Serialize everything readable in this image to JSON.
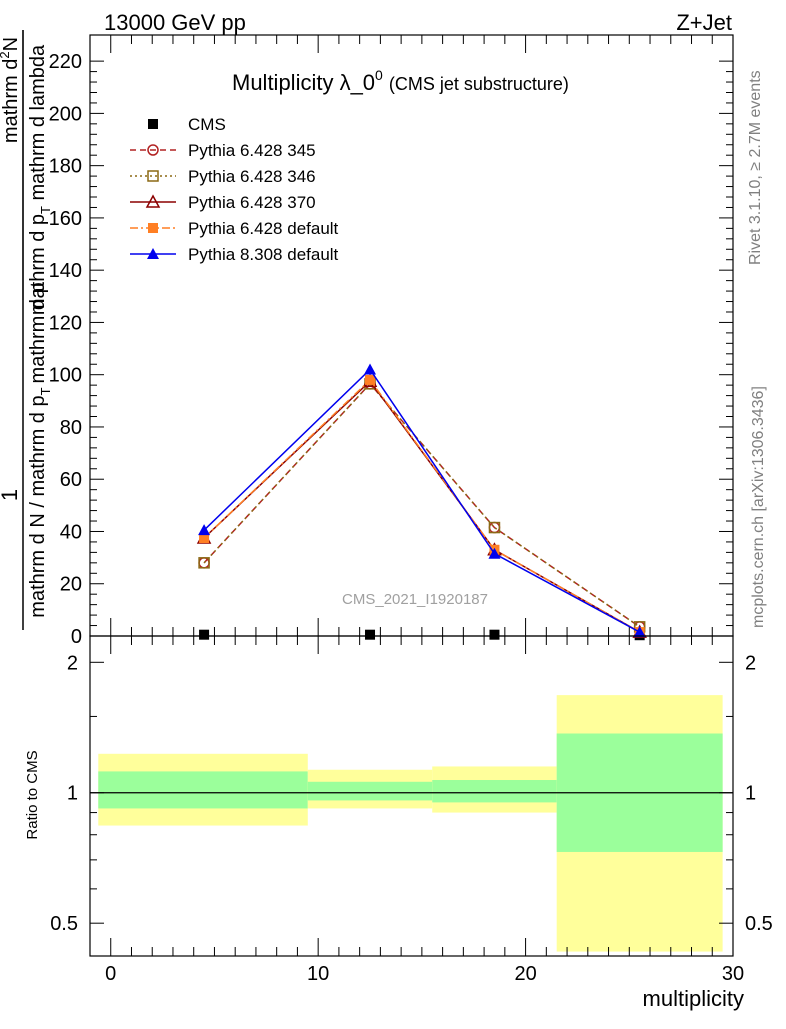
{
  "header": {
    "energy_label": "13000 GeV pp",
    "process_label": "Z+Jet",
    "analysis_id": "CMS_2021_I1920187",
    "rivet_label": "Rivet 3.1.10, ≥ 2.7M events",
    "source_label": "mcplots.cern.ch [arXiv:1306.3436]"
  },
  "colors": {
    "cms": "#000000",
    "p6_345": "#b22222",
    "p6_346": "#8b6914",
    "p6_370": "#8b0000",
    "p6_default": "#ff7f24",
    "p8_default": "#0000ee",
    "band_inner": "#9bff9b",
    "band_outer": "#ffff9b"
  },
  "chart_data": [
    {
      "type": "line",
      "title_main": "Multiplicity λ_0",
      "title_sup": "0",
      "title_sub": "(CMS jet substructure)",
      "ylabel_num_top": "1",
      "ylabel_den_top": "mathrm d N / mathrm d p",
      "ylabel_den_top_sub": "T",
      "ylabel_den_top_tail": "mathrm d p",
      "ylabel_num_bottom": "mathrm d",
      "ylabel_num_bottom_sup": "2",
      "ylabel_num_bottom_tail": "N",
      "ylabel_den_bottom": "mathrm d p",
      "ylabel_den_bottom_sub": "T",
      "ylabel_den_bottom_tail": " mathrm d lambda",
      "xlim": [
        -1,
        30
      ],
      "ylim": [
        0,
        230
      ],
      "yticks": [
        0,
        20,
        40,
        60,
        80,
        100,
        120,
        140,
        160,
        180,
        200,
        220
      ],
      "yticklabels": [
        "0",
        "20",
        "40",
        "60",
        "80",
        "100",
        "120",
        "140",
        "160",
        "180",
        "200",
        "220"
      ],
      "legend_position": "top-left",
      "x": [
        4.5,
        12.5,
        18.5,
        25.5
      ],
      "series": [
        {
          "name": "CMS",
          "key": "cms",
          "marker": "square-filled",
          "dash": "none",
          "values": [
            0.5,
            0.5,
            0.5,
            0.3
          ]
        },
        {
          "name": "Pythia 6.428 345",
          "key": "p6_345",
          "marker": "circle-open",
          "dash": "6,4",
          "values": [
            28,
            96.5,
            41.5,
            3.5
          ]
        },
        {
          "name": "Pythia 6.428 346",
          "key": "p6_346",
          "marker": "square-open",
          "dash": "2,3",
          "values": [
            28,
            96.5,
            41.5,
            3.5
          ]
        },
        {
          "name": "Pythia 6.428 370",
          "key": "p6_370",
          "marker": "triangle-open",
          "dash": "none",
          "values": [
            37.5,
            97.5,
            33,
            1.5
          ]
        },
        {
          "name": "Pythia 6.428 default",
          "key": "p6_default",
          "marker": "square-filled",
          "dash": "8,3,2,3",
          "values": [
            37.5,
            98,
            33,
            1.5
          ]
        },
        {
          "name": "Pythia 8.308 default",
          "key": "p8_default",
          "marker": "triangle-filled",
          "dash": "none",
          "values": [
            40.5,
            102,
            31.5,
            1.5
          ]
        }
      ]
    },
    {
      "type": "area",
      "ylabel": "Ratio to CMS",
      "xlabel": "multiplicity",
      "scale": "log",
      "ylim": [
        0.42,
        2.3
      ],
      "xticks": [
        0,
        10,
        20,
        30
      ],
      "xticklabels": [
        "0",
        "10",
        "20",
        "30"
      ],
      "yticks": [
        0.5,
        1,
        2
      ],
      "yticklabels": [
        "0.5",
        "1",
        "2"
      ],
      "reference": 1,
      "bins": [
        {
          "x0": -0.6,
          "x1": 9.5,
          "inner": [
            0.92,
            1.12
          ],
          "outer": [
            0.84,
            1.23
          ]
        },
        {
          "x0": 9.5,
          "x1": 15.5,
          "inner": [
            0.96,
            1.06
          ],
          "outer": [
            0.92,
            1.13
          ]
        },
        {
          "x0": 15.5,
          "x1": 21.5,
          "inner": [
            0.95,
            1.07
          ],
          "outer": [
            0.9,
            1.15
          ]
        },
        {
          "x0": 21.5,
          "x1": 29.5,
          "inner": [
            0.73,
            1.37
          ],
          "outer": [
            0.43,
            1.68
          ]
        }
      ]
    }
  ]
}
